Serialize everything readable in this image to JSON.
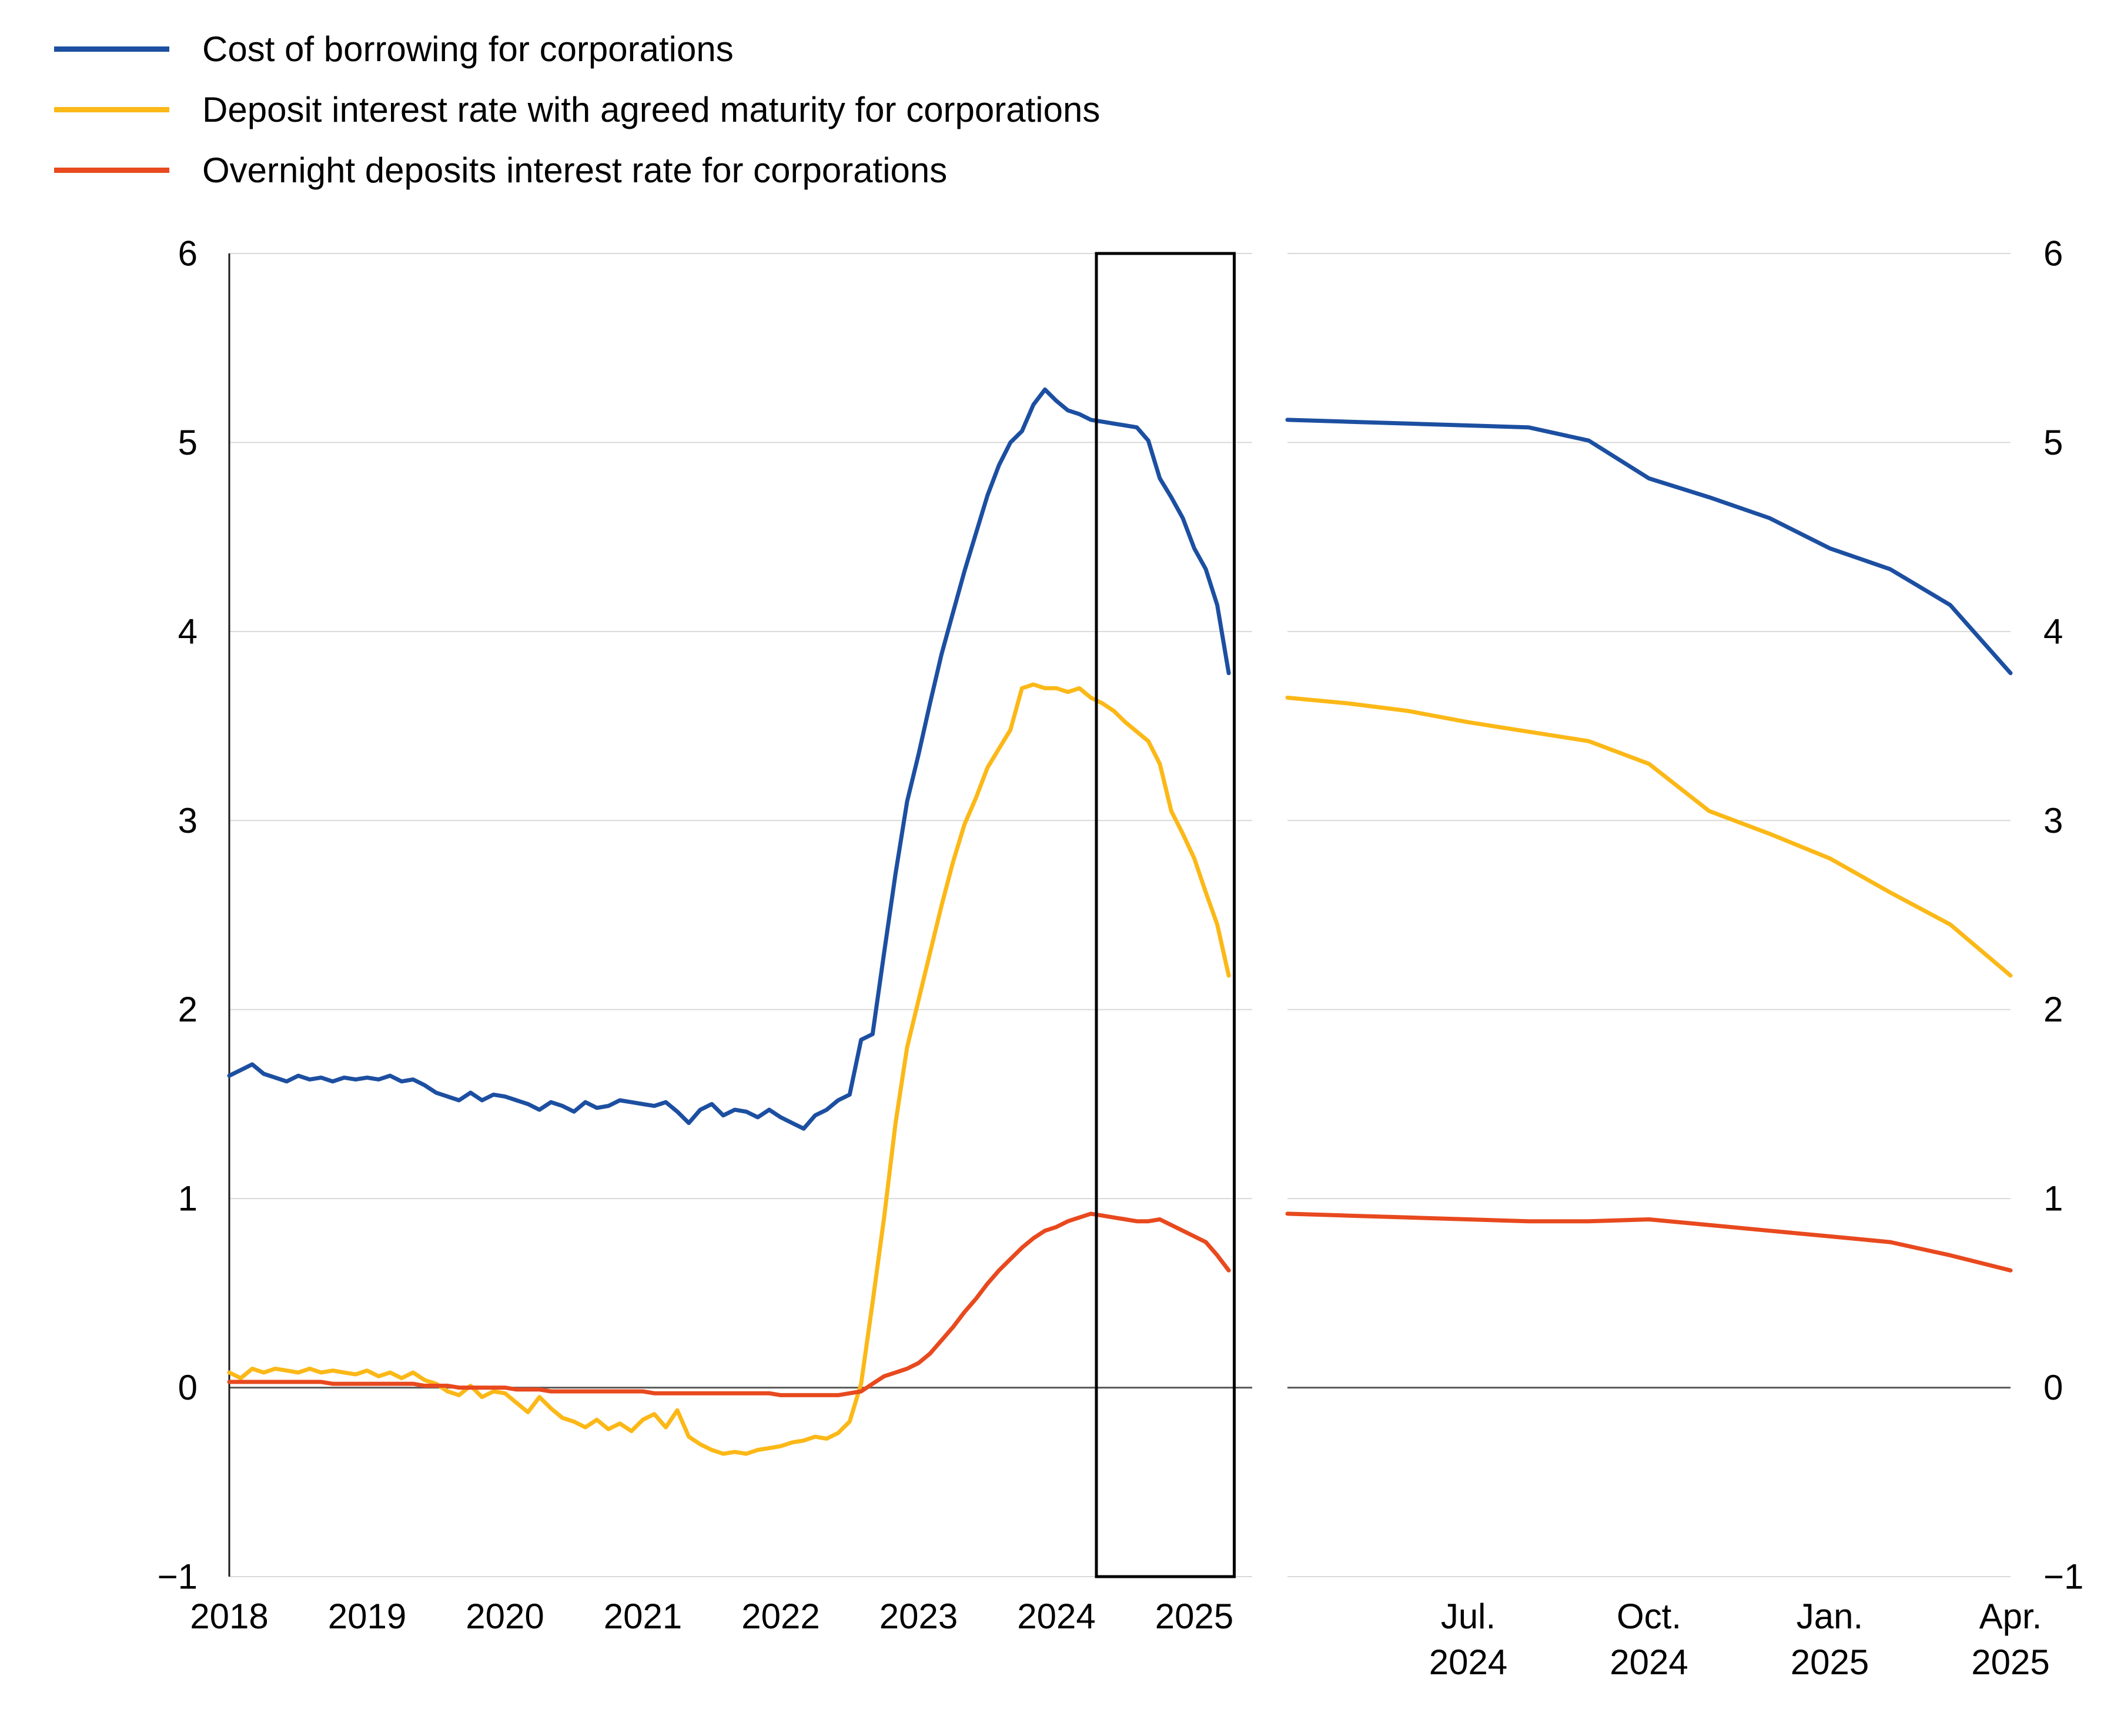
{
  "chart_style": {
    "grid_color": "#d9d9d9",
    "zero_line_color": "#595959",
    "axis_color": "#1a1a1a",
    "box_color": "#000000",
    "text_color": "#000000",
    "background": "#ffffff"
  },
  "chart_data": [
    {
      "id": "full-history",
      "type": "line",
      "x_unit": "year",
      "x_range": [
        2018.0,
        2025.42
      ],
      "x_start": 2018.0,
      "x_step": 0.0833333,
      "ylim": [
        -1,
        6
      ],
      "grid": true,
      "left_axis_line": true,
      "y_axis_side": "left",
      "highlight_box": {
        "x_from": 2024.29,
        "x_to": 2025.29
      },
      "x_ticks": [
        {
          "t": 2018,
          "label": "2018"
        },
        {
          "t": 2019,
          "label": "2019"
        },
        {
          "t": 2020,
          "label": "2020"
        },
        {
          "t": 2021,
          "label": "2021"
        },
        {
          "t": 2022,
          "label": "2022"
        },
        {
          "t": 2023,
          "label": "2023"
        },
        {
          "t": 2024,
          "label": "2024"
        },
        {
          "t": 2025,
          "label": "2025"
        }
      ],
      "y_ticks": [
        {
          "v": 6,
          "label": "6"
        },
        {
          "v": 5,
          "label": "5"
        },
        {
          "v": 4,
          "label": "4"
        },
        {
          "v": 3,
          "label": "3"
        },
        {
          "v": 2,
          "label": "2"
        },
        {
          "v": 1,
          "label": "1"
        },
        {
          "v": 0,
          "label": "0"
        },
        {
          "v": -1,
          "label": "−1"
        }
      ],
      "series": [
        {
          "name": "Cost of borrowing for corporations",
          "color": "#1c4fa1",
          "values": [
            1.65,
            1.68,
            1.71,
            1.66,
            1.64,
            1.62,
            1.65,
            1.63,
            1.64,
            1.62,
            1.64,
            1.63,
            1.64,
            1.63,
            1.65,
            1.62,
            1.63,
            1.6,
            1.56,
            1.54,
            1.52,
            1.56,
            1.52,
            1.55,
            1.54,
            1.52,
            1.5,
            1.47,
            1.51,
            1.49,
            1.46,
            1.51,
            1.48,
            1.49,
            1.52,
            1.51,
            1.5,
            1.49,
            1.51,
            1.46,
            1.4,
            1.47,
            1.5,
            1.44,
            1.47,
            1.46,
            1.43,
            1.47,
            1.43,
            1.4,
            1.37,
            1.44,
            1.47,
            1.52,
            1.55,
            1.84,
            1.87,
            2.3,
            2.72,
            3.1,
            3.35,
            3.62,
            3.88,
            4.1,
            4.32,
            4.52,
            4.72,
            4.88,
            5.0,
            5.06,
            5.2,
            5.28,
            5.22,
            5.17,
            5.15,
            5.12,
            5.11,
            5.1,
            5.09,
            5.08,
            5.01,
            4.81,
            4.71,
            4.6,
            4.44,
            4.33,
            4.14,
            3.78
          ]
        },
        {
          "name": "Deposit interest rate with agreed maturity for corporations",
          "color": "#fbb817",
          "values": [
            0.08,
            0.05,
            0.1,
            0.08,
            0.1,
            0.09,
            0.08,
            0.1,
            0.08,
            0.09,
            0.08,
            0.07,
            0.09,
            0.06,
            0.08,
            0.05,
            0.08,
            0.04,
            0.02,
            -0.02,
            -0.04,
            0.01,
            -0.05,
            -0.02,
            -0.03,
            -0.08,
            -0.13,
            -0.05,
            -0.11,
            -0.16,
            -0.18,
            -0.21,
            -0.17,
            -0.22,
            -0.19,
            -0.23,
            -0.17,
            -0.14,
            -0.21,
            -0.12,
            -0.26,
            -0.3,
            -0.33,
            -0.35,
            -0.34,
            -0.35,
            -0.33,
            -0.32,
            -0.31,
            -0.29,
            -0.28,
            -0.26,
            -0.27,
            -0.24,
            -0.18,
            0.02,
            0.45,
            0.9,
            1.4,
            1.8,
            2.05,
            2.3,
            2.55,
            2.78,
            2.98,
            3.12,
            3.28,
            3.38,
            3.48,
            3.7,
            3.72,
            3.7,
            3.7,
            3.68,
            3.7,
            3.65,
            3.62,
            3.58,
            3.52,
            3.47,
            3.42,
            3.3,
            3.05,
            2.93,
            2.8,
            2.62,
            2.45,
            2.18
          ]
        },
        {
          "name": "Overnight deposits interest rate for corporations",
          "color": "#e8491e",
          "values": [
            0.03,
            0.03,
            0.03,
            0.03,
            0.03,
            0.03,
            0.03,
            0.03,
            0.03,
            0.02,
            0.02,
            0.02,
            0.02,
            0.02,
            0.02,
            0.02,
            0.02,
            0.01,
            0.01,
            0.01,
            0.0,
            0.0,
            0.0,
            0.0,
            0.0,
            -0.01,
            -0.01,
            -0.01,
            -0.02,
            -0.02,
            -0.02,
            -0.02,
            -0.02,
            -0.02,
            -0.02,
            -0.02,
            -0.02,
            -0.03,
            -0.03,
            -0.03,
            -0.03,
            -0.03,
            -0.03,
            -0.03,
            -0.03,
            -0.03,
            -0.03,
            -0.03,
            -0.04,
            -0.04,
            -0.04,
            -0.04,
            -0.04,
            -0.04,
            -0.03,
            -0.02,
            0.02,
            0.06,
            0.08,
            0.1,
            0.13,
            0.18,
            0.25,
            0.32,
            0.4,
            0.47,
            0.55,
            0.62,
            0.68,
            0.74,
            0.79,
            0.83,
            0.85,
            0.88,
            0.9,
            0.92,
            0.91,
            0.9,
            0.89,
            0.88,
            0.88,
            0.89,
            0.86,
            0.83,
            0.8,
            0.77,
            0.7,
            0.62
          ]
        }
      ]
    },
    {
      "id": "zoom-last-12-months",
      "type": "line",
      "x_unit": "year",
      "x_range": [
        2024.25,
        2025.25
      ],
      "x_start": 2024.25,
      "x_step": 0.0833333,
      "ylim": [
        -1,
        6
      ],
      "grid": true,
      "left_axis_line": false,
      "y_axis_side": "right",
      "x_ticks": [
        {
          "t": 2024.5,
          "label": "Jul.",
          "sub": "2024"
        },
        {
          "t": 2024.75,
          "label": "Oct.",
          "sub": "2024"
        },
        {
          "t": 2025.0,
          "label": "Jan.",
          "sub": "2025"
        },
        {
          "t": 2025.25,
          "label": "Apr.",
          "sub": "2025"
        }
      ],
      "y_ticks": [
        {
          "v": 6,
          "label": "6"
        },
        {
          "v": 5,
          "label": "5"
        },
        {
          "v": 4,
          "label": "4"
        },
        {
          "v": 3,
          "label": "3"
        },
        {
          "v": 2,
          "label": "2"
        },
        {
          "v": 1,
          "label": "1"
        },
        {
          "v": 0,
          "label": "0"
        },
        {
          "v": -1,
          "label": "−1"
        }
      ],
      "series": [
        {
          "name": "Cost of borrowing for corporations",
          "color": "#1c4fa1",
          "values": [
            5.12,
            5.11,
            5.1,
            5.09,
            5.08,
            5.01,
            4.81,
            4.71,
            4.6,
            4.44,
            4.33,
            4.14,
            3.78
          ]
        },
        {
          "name": "Deposit interest rate with agreed maturity for corporations",
          "color": "#fbb817",
          "values": [
            3.65,
            3.62,
            3.58,
            3.52,
            3.47,
            3.42,
            3.3,
            3.05,
            2.93,
            2.8,
            2.62,
            2.45,
            2.18
          ]
        },
        {
          "name": "Overnight deposits interest rate for corporations",
          "color": "#e8491e",
          "values": [
            0.92,
            0.91,
            0.9,
            0.89,
            0.88,
            0.88,
            0.89,
            0.86,
            0.83,
            0.8,
            0.77,
            0.7,
            0.62
          ]
        }
      ]
    }
  ]
}
